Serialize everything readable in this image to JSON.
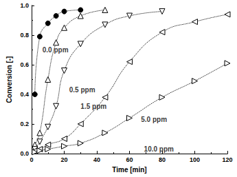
{
  "chart_data": {
    "type": "line",
    "x_label": "Time [min]",
    "y_label": "Conversion [-]",
    "xlim": [
      0,
      120
    ],
    "xticks": [
      0,
      20,
      40,
      60,
      80,
      100,
      120
    ],
    "ylim": [
      0,
      1.0
    ],
    "yticks": [
      {
        "value": 0,
        "label": "0.0"
      },
      {
        "value": 0.2,
        "label": "0.2"
      },
      {
        "value": 0.4,
        "label": "0.4"
      },
      {
        "value": 0.6,
        "label": "0.6"
      },
      {
        "value": 0.8,
        "label": "0.8"
      },
      {
        "value": 1.0,
        "label": "1.0"
      }
    ],
    "grid": false,
    "legend": false,
    "series": [
      {
        "color": "#000000",
        "marker": "filled-circle",
        "line_style": "dotted",
        "x": [
          2,
          5,
          10,
          15,
          20,
          30
        ],
        "values": [
          0.4,
          0.79,
          0.88,
          0.93,
          0.96,
          0.97
        ]
      },
      {
        "color": "#000000",
        "marker": "open-triangle-up",
        "line_style": "dotted",
        "x": [
          2,
          5,
          10,
          15,
          20,
          30,
          45
        ],
        "values": [
          0.06,
          0.14,
          0.5,
          0.75,
          0.85,
          0.93,
          0.97
        ]
      },
      {
        "color": "#000000",
        "marker": "open-triangle-down",
        "line_style": "dotted",
        "x": [
          2,
          5,
          10,
          15,
          20,
          30,
          45,
          60,
          80
        ],
        "values": [
          0.03,
          0.08,
          0.18,
          0.32,
          0.56,
          0.74,
          0.87,
          0.93,
          0.96
        ]
      },
      {
        "color": "#000000",
        "marker": "open-triangle-left",
        "line_style": "dotted",
        "x": [
          2,
          5,
          10,
          20,
          30,
          45,
          60,
          80,
          100,
          120
        ],
        "values": [
          0.02,
          0.03,
          0.06,
          0.1,
          0.2,
          0.38,
          0.62,
          0.82,
          0.89,
          0.94
        ]
      },
      {
        "color": "#000000",
        "marker": "open-triangle-right",
        "line_style": "dotted",
        "x": [
          2,
          5,
          10,
          20,
          30,
          45,
          60,
          80,
          100,
          120
        ],
        "values": [
          0.01,
          0.02,
          0.03,
          0.05,
          0.07,
          0.14,
          0.24,
          0.38,
          0.49,
          0.61
        ]
      }
    ],
    "annotations": [
      {
        "text": "0.0 ppm",
        "x": 14.6,
        "y": 0.7
      },
      {
        "text": "0.5 ppm",
        "x": 31,
        "y": 0.43
      },
      {
        "text": "1.5 ppm",
        "x": 38,
        "y": 0.32
      },
      {
        "text": "5.0 ppm",
        "x": 75,
        "y": 0.23
      },
      {
        "text": "10.0 ppm",
        "x": 78,
        "y": 0.03
      }
    ]
  }
}
